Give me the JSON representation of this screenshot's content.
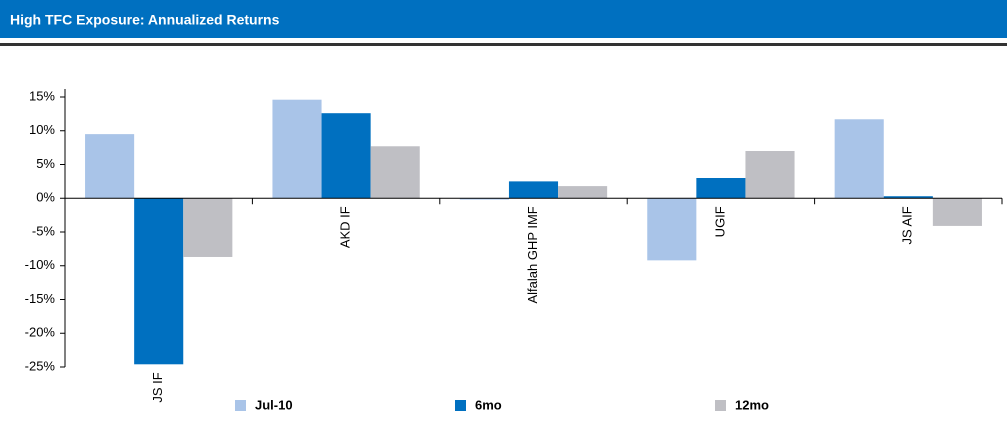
{
  "chart_data": {
    "type": "bar",
    "title": "High TFC Exposure: Annualized Returns",
    "categories": [
      "JS IF",
      "AKD IF",
      "Alfalah GHP IMF",
      "UGIF",
      "JS AIF"
    ],
    "series": [
      {
        "name": "Jul-10",
        "color": "#a9c4e8",
        "values": [
          9.5,
          14.6,
          -0.2,
          -9.2,
          11.7
        ]
      },
      {
        "name": "6mo",
        "color": "#0070c0",
        "values": [
          -24.6,
          12.6,
          2.5,
          3.0,
          0.3
        ]
      },
      {
        "name": "12mo",
        "color": "#bfbfc4",
        "values": [
          -8.7,
          7.7,
          1.8,
          7.0,
          -4.1
        ]
      }
    ],
    "ylim": [
      -25,
      15
    ],
    "yticks": [
      {
        "value": 15,
        "label": "15%"
      },
      {
        "value": 10,
        "label": "10%"
      },
      {
        "value": 5,
        "label": "5%"
      },
      {
        "value": 0,
        "label": "0%"
      },
      {
        "value": -5,
        "label": "-5%"
      },
      {
        "value": -10,
        "label": "-10%"
      },
      {
        "value": -15,
        "label": "-15%"
      },
      {
        "value": -20,
        "label": "-20%"
      },
      {
        "value": -25,
        "label": "-25%"
      }
    ]
  }
}
